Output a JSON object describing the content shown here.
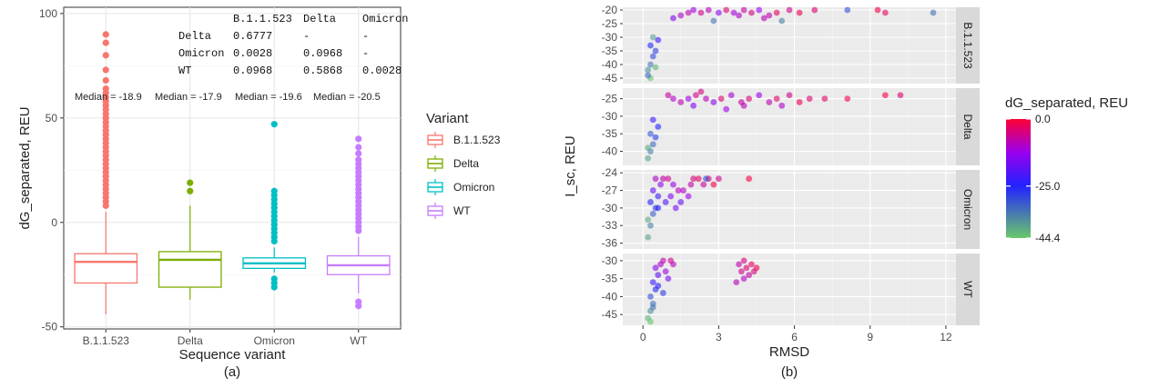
{
  "chart_data": [
    {
      "type": "box",
      "panel_label": "(a)",
      "xlabel": "Sequence variant",
      "ylabel": "dG_separated,  REU",
      "ylim": [
        -51,
        103
      ],
      "yticks": [
        -50,
        0,
        50,
        100
      ],
      "categories": [
        "B.1.1.523",
        "Delta",
        "Omicron",
        "WT"
      ],
      "colors": [
        "#F8766D",
        "#7CAE00",
        "#00BFC4",
        "#C77CFF"
      ],
      "boxes": [
        {
          "lower_whisker": -44,
          "q1": -29,
          "median": -18.9,
          "q3": -15,
          "upper_whisker": 5,
          "outliers": [
            90,
            86,
            80,
            73,
            68,
            64,
            62,
            60,
            58,
            56,
            54,
            52,
            50,
            48,
            46,
            44,
            42,
            40,
            38,
            36,
            34,
            32,
            30,
            28,
            26,
            24,
            22,
            20,
            18,
            16,
            14,
            12,
            10,
            8
          ]
        },
        {
          "lower_whisker": -37,
          "q1": -31,
          "median": -17.9,
          "q3": -14,
          "upper_whisker": 8,
          "outliers": [
            19,
            15
          ]
        },
        {
          "lower_whisker": -24,
          "q1": -22,
          "median": -19.6,
          "q3": -17,
          "upper_whisker": -12,
          "outliers": [
            47,
            15,
            13,
            11,
            9,
            7,
            5,
            3,
            1,
            -1,
            -3,
            -5,
            -7,
            -9,
            -27,
            -29,
            -31
          ]
        },
        {
          "lower_whisker": -34,
          "q1": -25,
          "median": -20.5,
          "q3": -16,
          "upper_whisker": -7,
          "outliers": [
            40,
            36,
            33,
            30,
            28,
            26,
            24,
            22,
            20,
            18,
            16,
            14,
            12,
            10,
            8,
            6,
            4,
            2,
            0,
            -2,
            -4,
            -38,
            -40
          ]
        }
      ],
      "median_labels": [
        "Median = -18.9",
        "Median = -17.9",
        "Median = -19.6",
        "Median = -20.5"
      ],
      "pvalue_table": {
        "header": [
          "",
          "B.1.1.523",
          "Delta",
          "Omicron"
        ],
        "rows": [
          [
            "Delta",
            "0.6777",
            "-",
            "-"
          ],
          [
            "Omicron",
            "0.0028",
            "0.0968",
            "-"
          ],
          [
            "WT",
            "0.0968",
            "0.5868",
            "0.0028"
          ]
        ]
      },
      "legend": {
        "title": "Variant",
        "position": "right",
        "labels": [
          "B.1.1.523",
          "Delta",
          "Omicron",
          "WT"
        ]
      }
    },
    {
      "type": "scatter",
      "panel_label": "(b)",
      "xlabel": "RMSD",
      "ylabel": "I_sc, REU",
      "xlim": [
        -0.8,
        12.4
      ],
      "xticks": [
        0,
        3,
        6,
        9,
        12
      ],
      "color_scale": {
        "title": "dG_separated, REU",
        "min": -44.4,
        "max": 0.0,
        "tick_labels": [
          "0.0",
          "-25.0",
          "-44.4"
        ]
      },
      "facets": [
        {
          "strip": "B.1.1.523",
          "ylim": [
            -47,
            -19
          ],
          "yticks": [
            -20,
            -25,
            -30,
            -35,
            -40,
            -45
          ],
          "points": [
            [
              0.3,
              -45,
              -44
            ],
            [
              0.2,
              -42,
              -38
            ],
            [
              0.3,
              -40,
              -35
            ],
            [
              0.4,
              -37,
              -30
            ],
            [
              0.5,
              -35,
              -28
            ],
            [
              0.3,
              -33,
              -26
            ],
            [
              0.6,
              -31,
              -22
            ],
            [
              0.4,
              -30,
              -40
            ],
            [
              0.5,
              -41,
              -42
            ],
            [
              0.2,
              -44,
              -33
            ],
            [
              1.5,
              -22,
              -10
            ],
            [
              1.8,
              -21,
              -8
            ],
            [
              2.0,
              -20,
              -12
            ],
            [
              2.3,
              -21,
              -6
            ],
            [
              2.6,
              -20,
              -9
            ],
            [
              3.0,
              -21,
              -14
            ],
            [
              3.3,
              -20,
              -4
            ],
            [
              3.6,
              -21,
              -11
            ],
            [
              4.0,
              -20,
              -7
            ],
            [
              4.3,
              -21,
              -5
            ],
            [
              4.6,
              -20,
              -13
            ],
            [
              5.0,
              -22,
              -8
            ],
            [
              5.3,
              -21,
              -3
            ],
            [
              5.8,
              -20,
              -6
            ],
            [
              6.2,
              -21,
              -2
            ],
            [
              6.8,
              -20,
              -4
            ],
            [
              1.2,
              -23,
              -15
            ],
            [
              2.8,
              -24,
              -35
            ],
            [
              5.5,
              -24,
              -36
            ],
            [
              8.1,
              -20,
              -30
            ],
            [
              9.3,
              -20,
              -1
            ],
            [
              9.6,
              -21,
              -3
            ],
            [
              11.5,
              -21,
              -34
            ],
            [
              3.8,
              -22,
              -10
            ],
            [
              4.8,
              -23,
              -9
            ]
          ]
        },
        {
          "strip": "Delta",
          "ylim": [
            -44,
            -22
          ],
          "yticks": [
            -25,
            -30,
            -35,
            -40
          ],
          "points": [
            [
              0.2,
              -42,
              -40
            ],
            [
              0.3,
              -40,
              -36
            ],
            [
              0.4,
              -38,
              -33
            ],
            [
              0.5,
              -36,
              -28
            ],
            [
              0.3,
              -35,
              -31
            ],
            [
              0.6,
              -33,
              -25
            ],
            [
              0.4,
              -31,
              -22
            ],
            [
              0.2,
              -39,
              -41
            ],
            [
              1.2,
              -25,
              -10
            ],
            [
              1.5,
              -26,
              -8
            ],
            [
              1.8,
              -25,
              -12
            ],
            [
              2.1,
              -24,
              -6
            ],
            [
              2.5,
              -25,
              -9
            ],
            [
              2.8,
              -26,
              -14
            ],
            [
              3.1,
              -25,
              -4
            ],
            [
              3.5,
              -24,
              -11
            ],
            [
              3.9,
              -26,
              -7
            ],
            [
              4.2,
              -25,
              -5
            ],
            [
              4.6,
              -24,
              -13
            ],
            [
              5.0,
              -26,
              -8
            ],
            [
              5.3,
              -25,
              -3
            ],
            [
              5.8,
              -24,
              -6
            ],
            [
              6.2,
              -26,
              -2
            ],
            [
              6.6,
              -25,
              -4
            ],
            [
              2.0,
              -27,
              -15
            ],
            [
              3.3,
              -28,
              -12
            ],
            [
              4.0,
              -27,
              -9
            ],
            [
              5.5,
              -27,
              -10
            ],
            [
              7.2,
              -25,
              -3
            ],
            [
              8.1,
              -25,
              -2
            ],
            [
              9.6,
              -24,
              -1
            ],
            [
              10.2,
              -24,
              -4
            ],
            [
              1.0,
              -24,
              -7
            ],
            [
              2.3,
              -23,
              -5
            ]
          ]
        },
        {
          "strip": "Omicron",
          "ylim": [
            -37,
            -23.5
          ],
          "yticks": [
            -24,
            -27,
            -30,
            -33,
            -36
          ],
          "points": [
            [
              0.2,
              -35,
              -40
            ],
            [
              0.3,
              -33,
              -36
            ],
            [
              0.4,
              -31,
              -32
            ],
            [
              0.5,
              -30,
              -28
            ],
            [
              0.3,
              -29,
              -25
            ],
            [
              0.6,
              -28,
              -22
            ],
            [
              0.4,
              -27,
              -18
            ],
            [
              0.2,
              -32,
              -41
            ],
            [
              0.7,
              -26,
              -14
            ],
            [
              0.5,
              -25,
              -10
            ],
            [
              0.8,
              -25,
              -8
            ],
            [
              1.0,
              -25,
              -6
            ],
            [
              1.2,
              -26,
              -12
            ],
            [
              1.4,
              -27,
              -9
            ],
            [
              1.1,
              -28,
              -15
            ],
            [
              0.9,
              -29,
              -20
            ],
            [
              1.3,
              -30,
              -16
            ],
            [
              1.6,
              -27,
              -10
            ],
            [
              1.8,
              -28,
              -12
            ],
            [
              2.0,
              -25,
              -5
            ],
            [
              2.2,
              -25,
              -3
            ],
            [
              2.4,
              -26,
              -7
            ],
            [
              2.6,
              -25,
              -4
            ],
            [
              2.8,
              -26,
              -2
            ],
            [
              3.0,
              -25,
              -6
            ],
            [
              1.5,
              -29,
              -18
            ],
            [
              0.6,
              -30,
              -24
            ],
            [
              4.2,
              -25,
              -1
            ],
            [
              1.9,
              -26,
              -8
            ],
            [
              2.5,
              -25,
              -30
            ]
          ]
        },
        {
          "strip": "WT",
          "ylim": [
            -48,
            -28
          ],
          "yticks": [
            -30,
            -35,
            -40,
            -45
          ],
          "points": [
            [
              0.2,
              -46,
              -42
            ],
            [
              0.3,
              -44,
              -38
            ],
            [
              0.4,
              -42,
              -34
            ],
            [
              0.3,
              -40,
              -30
            ],
            [
              0.5,
              -38,
              -26
            ],
            [
              0.4,
              -36,
              -22
            ],
            [
              0.6,
              -34,
              -18
            ],
            [
              0.5,
              -32,
              -14
            ],
            [
              0.7,
              -31,
              -10
            ],
            [
              0.8,
              -30,
              -8
            ],
            [
              0.9,
              -33,
              -12
            ],
            [
              1.0,
              -35,
              -16
            ],
            [
              1.2,
              -31,
              -9
            ],
            [
              0.6,
              -37,
              -24
            ],
            [
              0.3,
              -47,
              -44
            ],
            [
              1.1,
              -30,
              -6
            ],
            [
              0.8,
              -39,
              -28
            ],
            [
              0.4,
              -43,
              -35
            ],
            [
              3.8,
              -31,
              -8
            ],
            [
              3.9,
              -33,
              -6
            ],
            [
              4.0,
              -35,
              -10
            ],
            [
              4.1,
              -32,
              -4
            ],
            [
              4.2,
              -34,
              -7
            ],
            [
              4.3,
              -31,
              -3
            ],
            [
              4.4,
              -33,
              -5
            ],
            [
              3.7,
              -36,
              -9
            ],
            [
              4.5,
              -32,
              -2
            ],
            [
              4.0,
              -30,
              -5
            ]
          ]
        }
      ]
    }
  ]
}
